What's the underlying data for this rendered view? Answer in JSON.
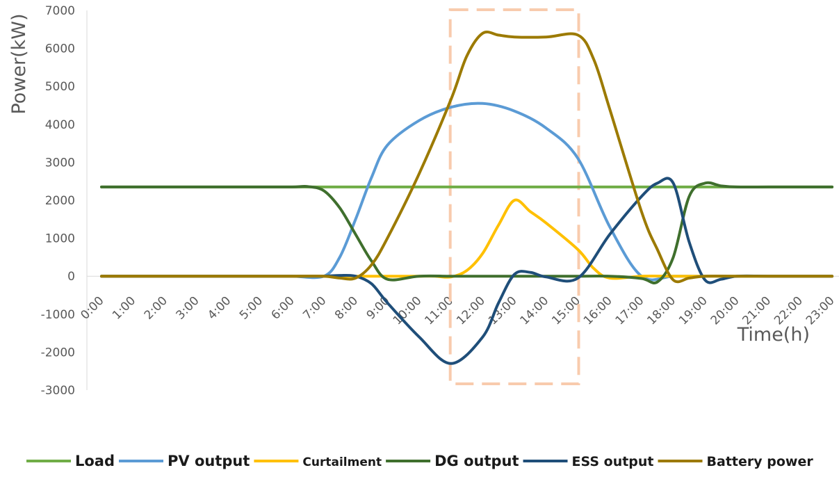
{
  "chart_data": {
    "type": "line",
    "xlabel": "Time(h)",
    "ylabel": "Power(kW)",
    "ylim": [
      -3000,
      7000
    ],
    "yticks": [
      -3000,
      -2000,
      -1000,
      0,
      1000,
      2000,
      3000,
      4000,
      5000,
      6000,
      7000
    ],
    "categories": [
      "0:00",
      "1:00",
      "2:00",
      "3:00",
      "4:00",
      "5:00",
      "6:00",
      "7:00",
      "8:00",
      "9:00",
      "10:00",
      "11:00",
      "12:00",
      "13:00",
      "14:00",
      "15:00",
      "16:00",
      "17:00",
      "18:00",
      "19:00",
      "20:00",
      "21:00",
      "22:00",
      "23:00"
    ],
    "legend_position": "bottom",
    "highlight_box": {
      "from": "11:00",
      "to": "15:00",
      "color": "#f8cbad"
    },
    "series": [
      {
        "name": "Load",
        "color": "#70ad47",
        "x": [
          0,
          1,
          2,
          3,
          4,
          5,
          6,
          7,
          8,
          9,
          10,
          11,
          12,
          13,
          14,
          15,
          16,
          17,
          18,
          19,
          20,
          21,
          22,
          23
        ],
        "values": [
          2350,
          2350,
          2350,
          2350,
          2350,
          2350,
          2350,
          2350,
          2350,
          2350,
          2350,
          2350,
          2350,
          2350,
          2350,
          2350,
          2350,
          2350,
          2350,
          2350,
          2350,
          2350,
          2350,
          2350
        ]
      },
      {
        "name": "PV output",
        "color": "#5b9bd5",
        "x": [
          0,
          1,
          2,
          3,
          4,
          5,
          6,
          7,
          7.5,
          8,
          8.5,
          9,
          10,
          11,
          12,
          13,
          14,
          15,
          16,
          17,
          18,
          19,
          20,
          21,
          22,
          23
        ],
        "values": [
          0,
          0,
          0,
          0,
          0,
          0,
          0,
          0,
          500,
          1500,
          2600,
          3450,
          4100,
          4450,
          4550,
          4350,
          3900,
          3100,
          1300,
          0,
          0,
          0,
          0,
          0,
          0,
          0
        ]
      },
      {
        "name": "Curtailment",
        "color": "#ffc000",
        "x": [
          0,
          1,
          2,
          3,
          4,
          5,
          6,
          7,
          8,
          9,
          10,
          10.5,
          11,
          11.5,
          12,
          12.5,
          13,
          13.5,
          14,
          15,
          15.5,
          16,
          17,
          18,
          19,
          20,
          21,
          22,
          23
        ],
        "values": [
          0,
          0,
          0,
          0,
          0,
          0,
          0,
          0,
          0,
          0,
          0,
          0,
          -20,
          150,
          600,
          1350,
          2000,
          1700,
          1400,
          700,
          200,
          -50,
          0,
          0,
          0,
          0,
          0,
          0,
          0
        ]
      },
      {
        "name": "DG output",
        "color": "#3f6f2d",
        "x": [
          0,
          1,
          2,
          3,
          4,
          5,
          6,
          6.5,
          7,
          7.5,
          8,
          8.5,
          9,
          10,
          11,
          12,
          13,
          14,
          15,
          16,
          17,
          17.5,
          18,
          18.5,
          19,
          19.5,
          20,
          21,
          22,
          23
        ],
        "values": [
          2350,
          2350,
          2350,
          2350,
          2350,
          2350,
          2350,
          2360,
          2250,
          1800,
          1100,
          400,
          -80,
          0,
          0,
          0,
          0,
          0,
          0,
          0,
          -60,
          -150,
          500,
          2100,
          2450,
          2380,
          2350,
          2350,
          2350,
          2350
        ]
      },
      {
        "name": "ESS output",
        "color": "#1f4e79",
        "x": [
          0,
          1,
          2,
          3,
          4,
          5,
          6,
          7,
          7.5,
          8,
          8.5,
          9,
          10,
          11,
          12,
          12.5,
          13,
          13.5,
          14,
          15,
          16,
          17,
          17.5,
          18,
          18.5,
          19,
          19.5,
          20,
          21,
          22,
          23
        ],
        "values": [
          0,
          0,
          0,
          0,
          0,
          0,
          0,
          0,
          20,
          0,
          -200,
          -700,
          -1600,
          -2300,
          -1600,
          -700,
          50,
          100,
          -20,
          -50,
          1100,
          2100,
          2450,
          2450,
          900,
          -100,
          -80,
          0,
          0,
          0,
          0
        ]
      },
      {
        "name": "Battery power",
        "color": "#9c7a00",
        "x": [
          0,
          1,
          2,
          3,
          4,
          5,
          6,
          7,
          7.5,
          8,
          8.5,
          9,
          10,
          11,
          11.5,
          12,
          12.5,
          13,
          14,
          15,
          15.5,
          16,
          17,
          17.5,
          18,
          18.5,
          19,
          20,
          21,
          22,
          23
        ],
        "values": [
          0,
          0,
          0,
          0,
          0,
          0,
          0,
          0,
          -50,
          -50,
          300,
          1000,
          2700,
          4650,
          5800,
          6400,
          6350,
          6300,
          6300,
          6350,
          5700,
          4400,
          1700,
          700,
          -100,
          -50,
          0,
          0,
          0,
          0,
          0
        ]
      }
    ]
  }
}
